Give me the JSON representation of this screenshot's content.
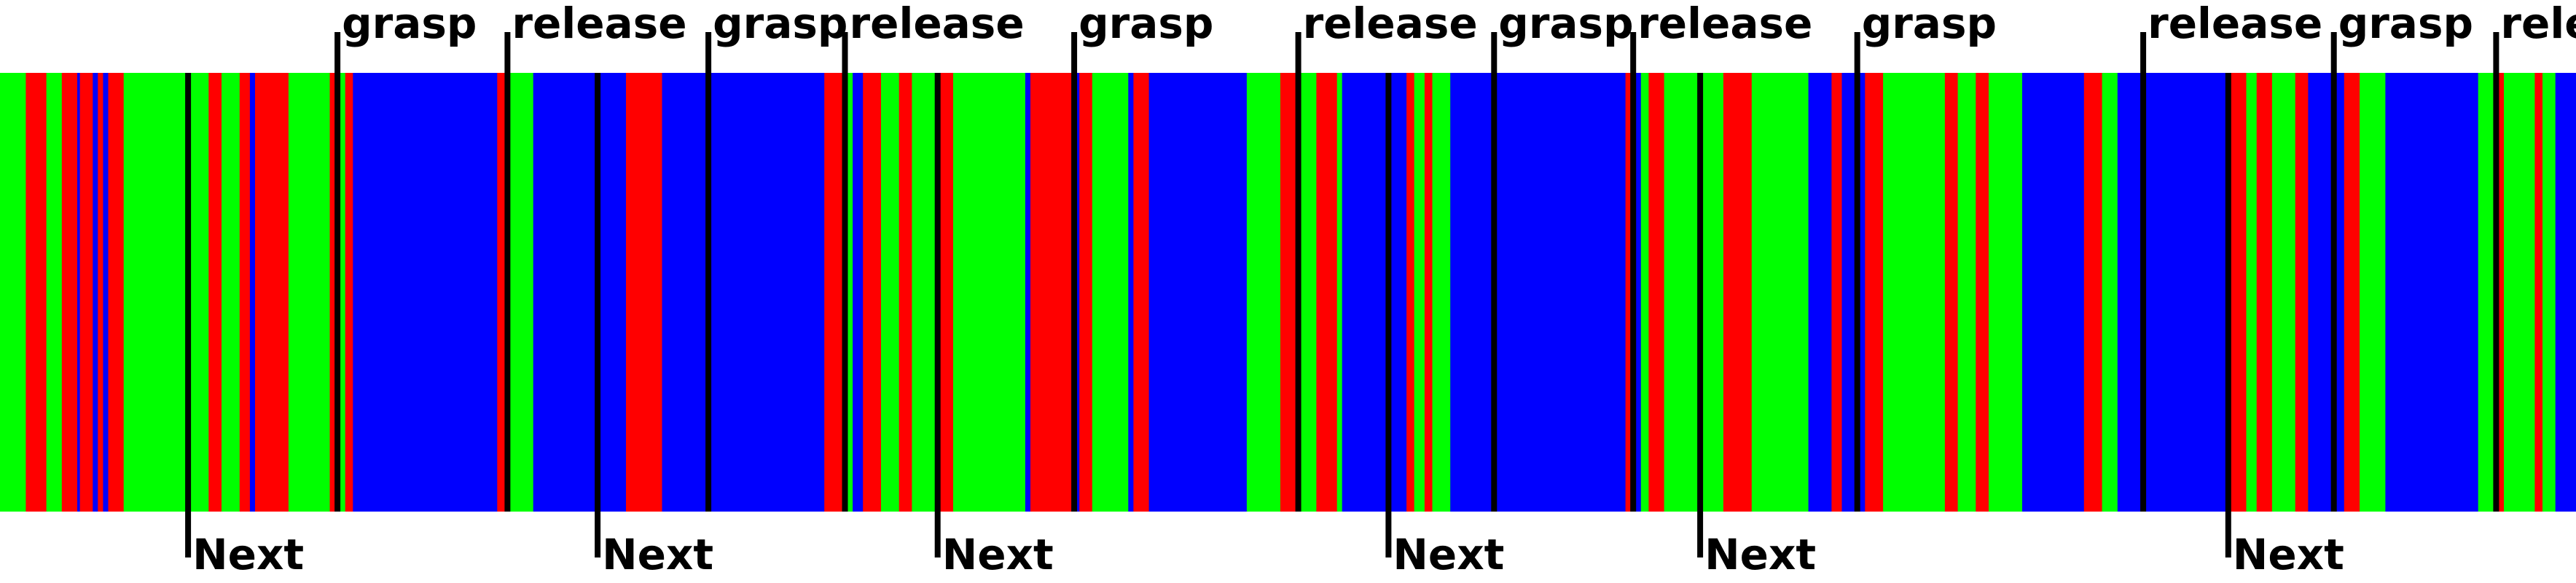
{
  "colors": {
    "green": "#00ff00",
    "red": "#ff0000",
    "blue": "#0000ff",
    "marker": "#000000",
    "background": "#ffffff"
  },
  "events": {
    "upper": [
      {
        "t": 0.131,
        "label": "grasp"
      },
      {
        "t": 0.197,
        "label": "release"
      },
      {
        "t": 0.275,
        "label": "grasp"
      },
      {
        "t": 0.328,
        "label": "release"
      },
      {
        "t": 0.417,
        "label": "grasp"
      },
      {
        "t": 0.504,
        "label": "release"
      },
      {
        "t": 0.58,
        "label": "grasp"
      },
      {
        "t": 0.634,
        "label": "release"
      },
      {
        "t": 0.721,
        "label": "grasp"
      },
      {
        "t": 0.832,
        "label": "release"
      },
      {
        "t": 0.906,
        "label": "grasp"
      },
      {
        "t": 0.969,
        "label": "rele"
      }
    ],
    "lower": [
      {
        "t": 0.073,
        "label": "Next"
      },
      {
        "t": 0.232,
        "label": "Next"
      },
      {
        "t": 0.364,
        "label": "Next"
      },
      {
        "t": 0.539,
        "label": "Next"
      },
      {
        "t": 0.66,
        "label": "Next"
      },
      {
        "t": 0.865,
        "label": "Next"
      }
    ]
  },
  "segments": [
    [
      "green",
      0.0
    ],
    [
      "red",
      0.01
    ],
    [
      "green",
      0.018
    ],
    [
      "red",
      0.024
    ],
    [
      "blue",
      0.03
    ],
    [
      "red",
      0.031
    ],
    [
      "blue",
      0.036
    ],
    [
      "red",
      0.038
    ],
    [
      "blue",
      0.04
    ],
    [
      "red",
      0.042
    ],
    [
      "green",
      0.048
    ],
    [
      "red",
      0.081
    ],
    [
      "green",
      0.086
    ],
    [
      "red",
      0.093
    ],
    [
      "blue",
      0.097
    ],
    [
      "red",
      0.099
    ],
    [
      "green",
      0.112
    ],
    [
      "red",
      0.128
    ],
    [
      "green",
      0.131
    ],
    [
      "red",
      0.134
    ],
    [
      "blue",
      0.137
    ],
    [
      "red",
      0.193
    ],
    [
      "blue",
      0.196
    ],
    [
      "green",
      0.198
    ],
    [
      "blue",
      0.207
    ],
    [
      "red",
      0.243
    ],
    [
      "blue",
      0.257
    ],
    [
      "red",
      0.32
    ],
    [
      "green",
      0.328
    ],
    [
      "blue",
      0.331
    ],
    [
      "red",
      0.335
    ],
    [
      "green",
      0.342
    ],
    [
      "red",
      0.349
    ],
    [
      "green",
      0.354
    ],
    [
      "red",
      0.364
    ],
    [
      "green",
      0.37
    ],
    [
      "blue",
      0.398
    ],
    [
      "red",
      0.4
    ],
    [
      "blue",
      0.416
    ],
    [
      "red",
      0.419
    ],
    [
      "green",
      0.424
    ],
    [
      "blue",
      0.438
    ],
    [
      "red",
      0.44
    ],
    [
      "blue",
      0.446
    ],
    [
      "green",
      0.484
    ],
    [
      "red",
      0.497
    ],
    [
      "green",
      0.504
    ],
    [
      "red",
      0.511
    ],
    [
      "green",
      0.519
    ],
    [
      "blue",
      0.521
    ],
    [
      "red",
      0.546
    ],
    [
      "green",
      0.549
    ],
    [
      "red",
      0.553
    ],
    [
      "green",
      0.556
    ],
    [
      "blue",
      0.563
    ],
    [
      "red",
      0.631
    ],
    [
      "blue",
      0.634
    ],
    [
      "green",
      0.637
    ],
    [
      "red",
      0.64
    ],
    [
      "green",
      0.646
    ],
    [
      "red",
      0.669
    ],
    [
      "green",
      0.68
    ],
    [
      "blue",
      0.702
    ],
    [
      "red",
      0.711
    ],
    [
      "blue",
      0.715
    ],
    [
      "red",
      0.724
    ],
    [
      "green",
      0.731
    ],
    [
      "red",
      0.755
    ],
    [
      "green",
      0.76
    ],
    [
      "red",
      0.767
    ],
    [
      "green",
      0.772
    ],
    [
      "blue",
      0.785
    ],
    [
      "red",
      0.809
    ],
    [
      "green",
      0.816
    ],
    [
      "blue",
      0.822
    ],
    [
      "red",
      0.864
    ],
    [
      "green",
      0.872
    ],
    [
      "red",
      0.876
    ],
    [
      "green",
      0.882
    ],
    [
      "red",
      0.891
    ],
    [
      "blue",
      0.896
    ],
    [
      "red",
      0.91
    ],
    [
      "green",
      0.916
    ],
    [
      "blue",
      0.926
    ],
    [
      "green",
      0.962
    ],
    [
      "red",
      0.968
    ],
    [
      "green",
      0.972
    ],
    [
      "red",
      0.984
    ],
    [
      "green",
      0.987
    ],
    [
      "blue",
      0.992
    ]
  ]
}
